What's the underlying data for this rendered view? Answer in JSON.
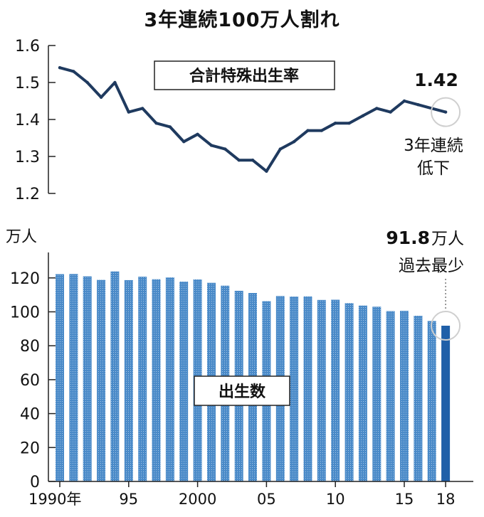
{
  "title": "3年連続100万人割れ",
  "chart_data": [
    {
      "type": "line",
      "name": "合計特殊出生率",
      "x": [
        1990,
        1991,
        1992,
        1993,
        1994,
        1995,
        1996,
        1997,
        1998,
        1999,
        2000,
        2001,
        2002,
        2003,
        2004,
        2005,
        2006,
        2007,
        2008,
        2009,
        2010,
        2011,
        2012,
        2013,
        2014,
        2015,
        2016,
        2017,
        2018
      ],
      "values": [
        1.54,
        1.53,
        1.5,
        1.46,
        1.5,
        1.42,
        1.43,
        1.39,
        1.38,
        1.34,
        1.36,
        1.33,
        1.32,
        1.29,
        1.29,
        1.26,
        1.32,
        1.34,
        1.37,
        1.37,
        1.39,
        1.39,
        1.41,
        1.43,
        1.42,
        1.45,
        1.44,
        1.43,
        1.42
      ],
      "ylim": [
        1.2,
        1.6
      ],
      "yticks": [
        "1.6",
        "1.5",
        "1.4",
        "1.3",
        "1.2"
      ],
      "color": "#1f3a5f",
      "label": "合計特殊出生率",
      "annotation": {
        "value": "1.42",
        "line1": "3年連続",
        "line2": "低下"
      }
    },
    {
      "type": "bar",
      "name": "出生数",
      "unit": "万人",
      "x": [
        1990,
        1991,
        1992,
        1993,
        1994,
        1995,
        1996,
        1997,
        1998,
        1999,
        2000,
        2001,
        2002,
        2003,
        2004,
        2005,
        2006,
        2007,
        2008,
        2009,
        2010,
        2011,
        2012,
        2013,
        2014,
        2015,
        2016,
        2017,
        2018
      ],
      "values": [
        122.2,
        122.3,
        120.9,
        118.8,
        123.8,
        118.7,
        120.7,
        119.2,
        120.3,
        117.8,
        119.1,
        117.1,
        115.4,
        112.4,
        111.1,
        106.3,
        109.3,
        109.0,
        109.1,
        107.0,
        107.1,
        105.1,
        103.7,
        103.0,
        100.4,
        100.6,
        97.7,
        94.6,
        91.8
      ],
      "ylim": [
        0,
        135
      ],
      "yticks": [
        "0",
        "20",
        "40",
        "60",
        "80",
        "100",
        "120"
      ],
      "color": "#3d7fc0",
      "highlight_color": "#1f5fa8",
      "label": "出生数",
      "annotation": {
        "value": "91.8",
        "unit": "万人",
        "line2": "過去最少"
      }
    }
  ],
  "x_tick_labels": [
    {
      "year": 1990,
      "text": "1990年"
    },
    {
      "year": 1995,
      "text": "95"
    },
    {
      "year": 2000,
      "text": "2000"
    },
    {
      "year": 2005,
      "text": "05"
    },
    {
      "year": 2010,
      "text": "10"
    },
    {
      "year": 2015,
      "text": "15"
    },
    {
      "year": 2018,
      "text": "18"
    }
  ]
}
